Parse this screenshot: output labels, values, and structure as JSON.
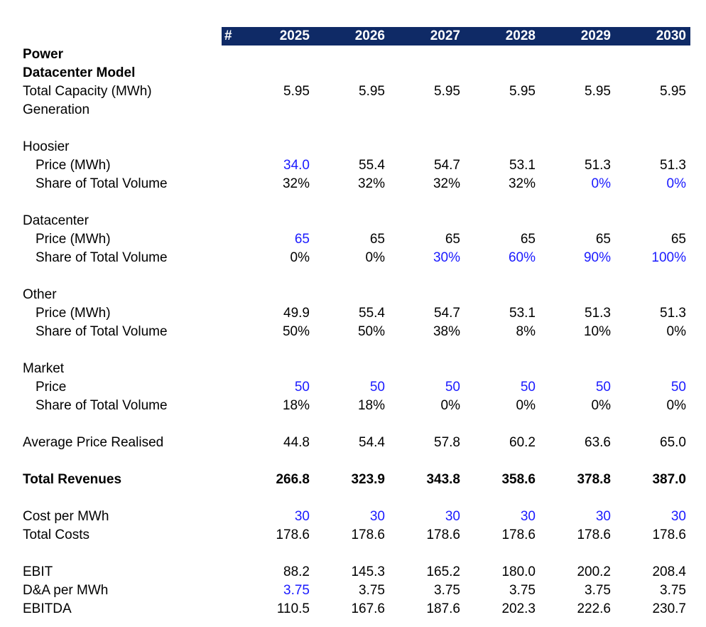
{
  "colors": {
    "header_bg": "#0f2a66",
    "header_text": "#ffffff",
    "input_text": "#1a1aff",
    "body_text": "#000000"
  },
  "header": {
    "hash": "#",
    "years": [
      "2025",
      "2026",
      "2027",
      "2028",
      "2029",
      "2030"
    ]
  },
  "sections": {
    "power": "Power",
    "datacenter_model": "Datacenter Model",
    "total_capacity": {
      "label": "Total Capacity (MWh)",
      "values": [
        "5.95",
        "5.95",
        "5.95",
        "5.95",
        "5.95",
        "5.95"
      ]
    },
    "generation": "Generation",
    "hoosier": {
      "title": "Hoosier",
      "price_label": "Price (MWh)",
      "price": [
        "34.0",
        "55.4",
        "54.7",
        "53.1",
        "51.3",
        "51.3"
      ],
      "share_label": "Share of Total Volume",
      "share": [
        "32%",
        "32%",
        "32%",
        "32%",
        "0%",
        "0%"
      ]
    },
    "datacenter": {
      "title": "Datacenter",
      "price_label": "Price (MWh)",
      "price": [
        "65",
        "65",
        "65",
        "65",
        "65",
        "65"
      ],
      "share_label": "Share of Total Volume",
      "share": [
        "0%",
        "0%",
        "30%",
        "60%",
        "90%",
        "100%"
      ]
    },
    "other": {
      "title": "Other",
      "price_label": "Price (MWh)",
      "price": [
        "49.9",
        "55.4",
        "54.7",
        "53.1",
        "51.3",
        "51.3"
      ],
      "share_label": "Share of Total Volume",
      "share": [
        "50%",
        "50%",
        "38%",
        "8%",
        "10%",
        "0%"
      ]
    },
    "market": {
      "title": "Market",
      "price_label": "Price",
      "price": [
        "50",
        "50",
        "50",
        "50",
        "50",
        "50"
      ],
      "share_label": "Share of Total Volume",
      "share": [
        "18%",
        "18%",
        "0%",
        "0%",
        "0%",
        "0%"
      ]
    },
    "avg_price": {
      "label": "Average Price Realised",
      "values": [
        "44.8",
        "54.4",
        "57.8",
        "60.2",
        "63.6",
        "65.0"
      ]
    },
    "total_revenues": {
      "label": "Total Revenues",
      "values": [
        "266.8",
        "323.9",
        "343.8",
        "358.6",
        "378.8",
        "387.0"
      ]
    },
    "cost_per_mwh": {
      "label": "Cost per MWh",
      "values": [
        "30",
        "30",
        "30",
        "30",
        "30",
        "30"
      ]
    },
    "total_costs": {
      "label": "Total Costs",
      "values": [
        "178.6",
        "178.6",
        "178.6",
        "178.6",
        "178.6",
        "178.6"
      ]
    },
    "ebit": {
      "label": "EBIT",
      "values": [
        "88.2",
        "145.3",
        "165.2",
        "180.0",
        "200.2",
        "208.4"
      ]
    },
    "da_per_mwh": {
      "label": "D&A per MWh",
      "values": [
        "3.75",
        "3.75",
        "3.75",
        "3.75",
        "3.75",
        "3.75"
      ]
    },
    "ebitda": {
      "label": "EBITDA",
      "values": [
        "110.5",
        "167.6",
        "187.6",
        "202.3",
        "222.6",
        "230.7"
      ]
    }
  }
}
